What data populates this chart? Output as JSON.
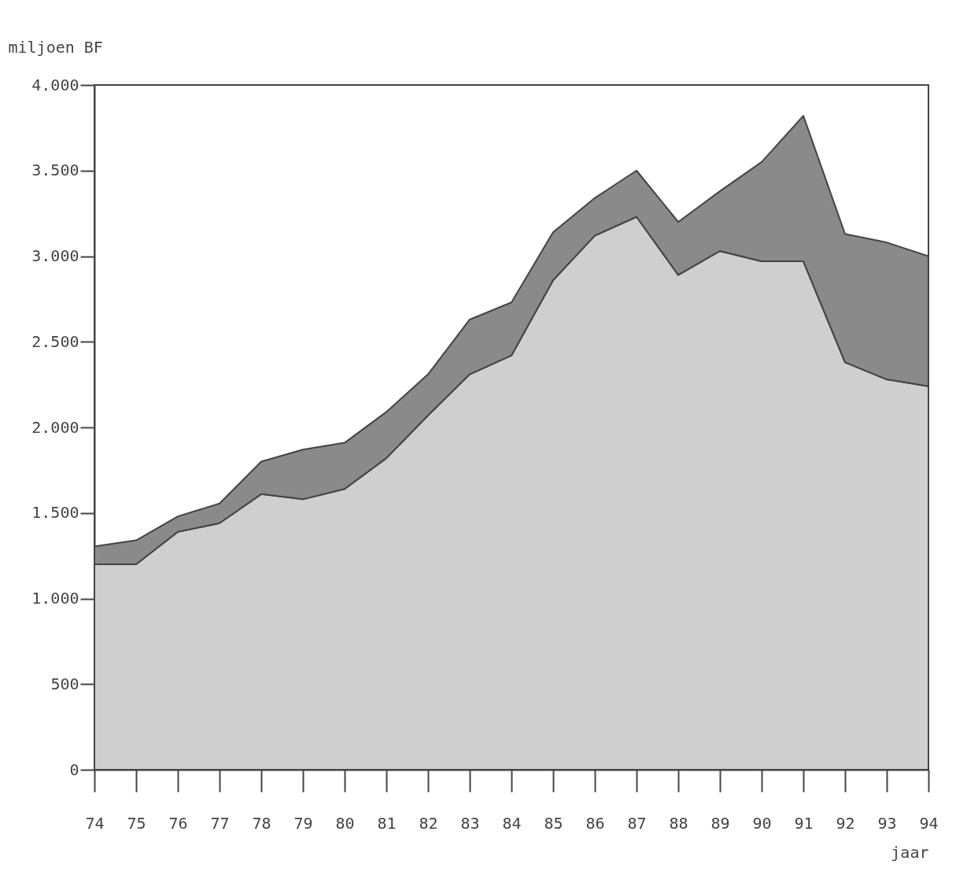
{
  "chart_data": {
    "type": "area",
    "stacked": true,
    "xlabel": "jaar",
    "ylabel": "miljoen BF",
    "categories": [
      "74",
      "75",
      "76",
      "77",
      "78",
      "79",
      "80",
      "81",
      "82",
      "83",
      "84",
      "85",
      "86",
      "87",
      "88",
      "89",
      "90",
      "91",
      "92",
      "93",
      "94"
    ],
    "series": [
      {
        "color": "#cfcfcf",
        "values": [
          1200,
          1200,
          1390,
          1440,
          1610,
          1580,
          1640,
          1820,
          2070,
          2310,
          2420,
          2860,
          3120,
          3230,
          2890,
          3030,
          2970,
          2970,
          2380,
          2280,
          2240
        ]
      },
      {
        "color": "#8a8a8a",
        "values": [
          105,
          140,
          90,
          115,
          190,
          290,
          270,
          270,
          240,
          320,
          310,
          280,
          220,
          270,
          310,
          350,
          580,
          850,
          750,
          800,
          760
        ]
      }
    ],
    "ylim": [
      0,
      4000
    ],
    "yticks": [
      0,
      500,
      {
        "value": 1000,
        "label": "1.000"
      },
      {
        "value": 1500,
        "label": "1.500"
      },
      {
        "value": 2000,
        "label": "2.000"
      },
      {
        "value": 2500,
        "label": "2.500"
      },
      {
        "value": 3000,
        "label": "3.000"
      },
      {
        "value": 3500,
        "label": "3.500"
      },
      {
        "value": 4000,
        "label": "4.000"
      }
    ],
    "grid": false,
    "legend": false
  }
}
